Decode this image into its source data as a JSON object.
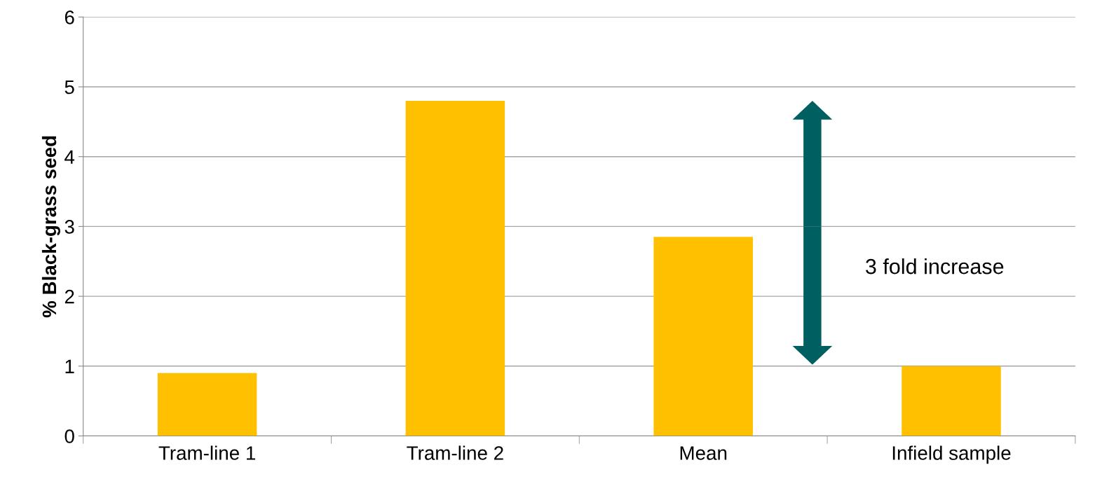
{
  "chart_data": {
    "type": "bar",
    "ylabel": "% Black-grass seed",
    "categories": [
      "Tram-line 1",
      "Tram-line 2",
      "Mean",
      "Infield sample"
    ],
    "values": [
      0.9,
      4.8,
      2.85,
      1.0
    ],
    "color": "#ffc000",
    "ylim": [
      0,
      6
    ],
    "yticks": [
      0,
      1,
      2,
      3,
      4,
      5,
      6
    ],
    "grid": "y",
    "annotations": [
      "3 fold increase"
    ]
  }
}
